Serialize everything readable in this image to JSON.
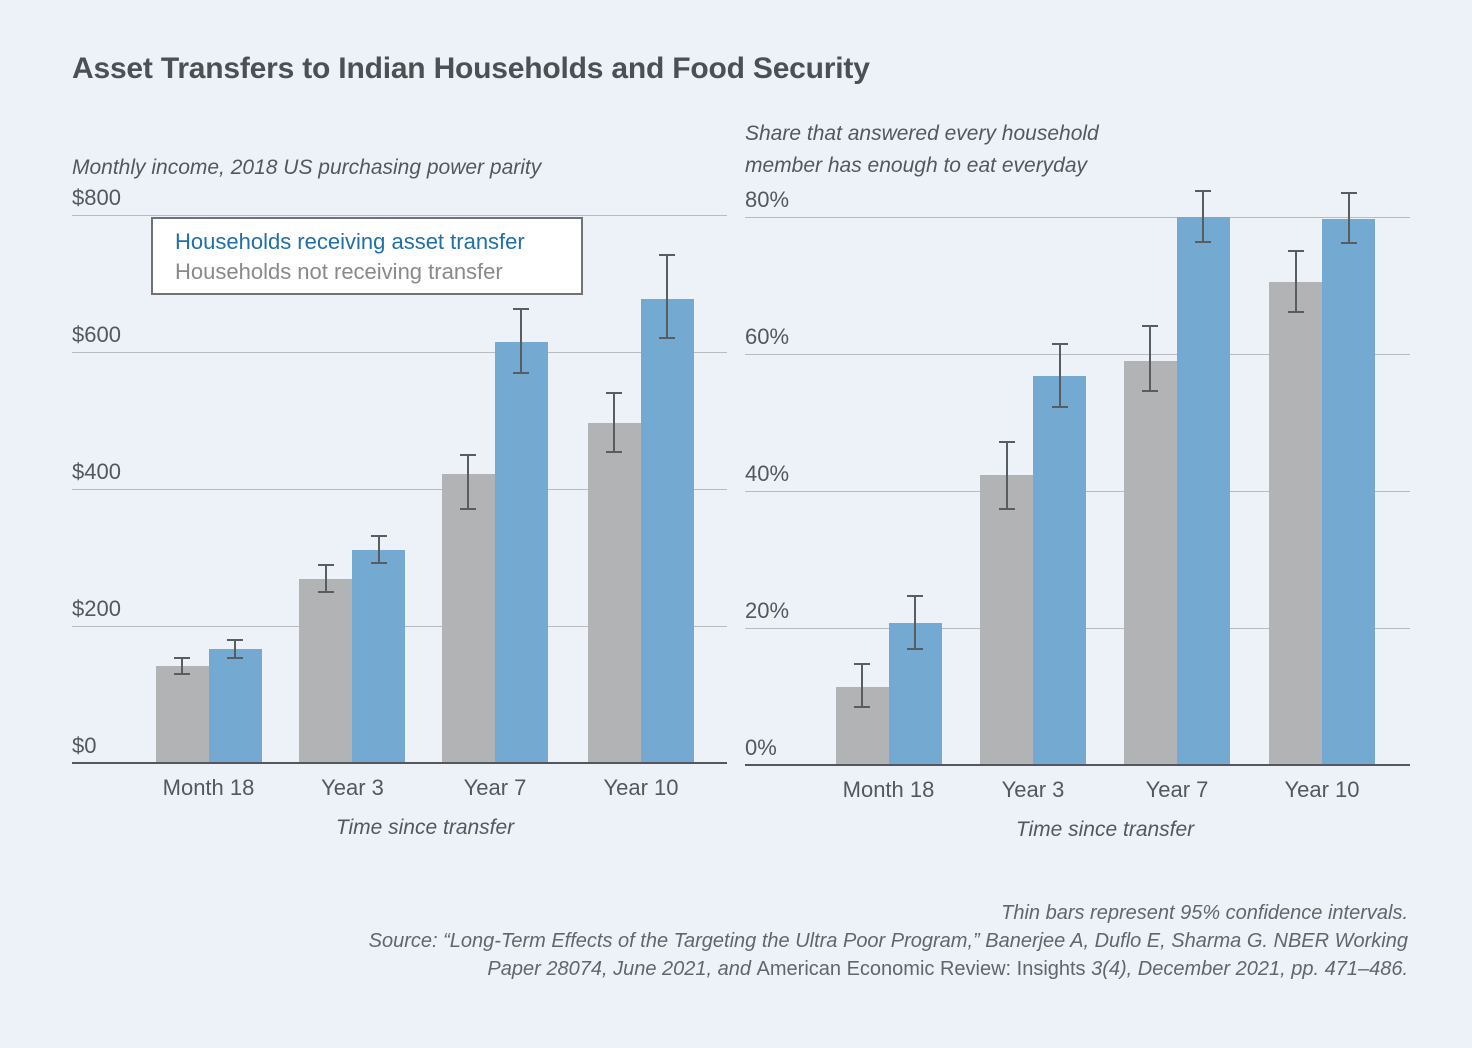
{
  "page": {
    "title": "Asset Transfers to Indian Households and Food Security",
    "background_color": "#edf2f8"
  },
  "legend": {
    "receiving_label": "Households receiving asset transfer",
    "not_receiving_label": "Households not receiving transfer",
    "receiving_text_color": "#1f6fa9",
    "not_receiving_text_color": "#87898c"
  },
  "colors": {
    "bar_blue": "#74a9d2",
    "bar_gray": "#b1b3b5",
    "gridline": "#b9bcbf",
    "axis": "#54585c",
    "error_bar": "#585d62",
    "title_text": "#4b5055",
    "label_text": "#54585d"
  },
  "chart_data": [
    {
      "type": "bar",
      "title": "Monthly income, 2018 US purchasing power parity",
      "title_lines": [
        "Monthly income, 2018 US purchasing power parity"
      ],
      "xlabel": "Time since transfer",
      "categories": [
        "Month 18",
        "Year 3",
        "Year 7",
        "Year 10"
      ],
      "ylim": [
        0,
        800
      ],
      "yticks": [
        {
          "value": 0,
          "label": "$0"
        },
        {
          "value": 200,
          "label": "$200"
        },
        {
          "value": 400,
          "label": "$400"
        },
        {
          "value": 600,
          "label": "$600"
        },
        {
          "value": 800,
          "label": "$800"
        }
      ],
      "grid": true,
      "legend_position": "top-left-inset",
      "error_bar_meaning": "95% confidence intervals",
      "series": [
        {
          "id": "not_receiving",
          "name": "Households not receiving transfer",
          "color": "#b1b3b5",
          "values": [
            142,
            268,
            422,
            496
          ],
          "ci_low": [
            130,
            249,
            371,
            454
          ],
          "ci_high": [
            153,
            289,
            450,
            540
          ]
        },
        {
          "id": "receiving",
          "name": "Households receiving asset transfer",
          "color": "#74a9d2",
          "values": [
            167,
            311,
            615,
            678
          ],
          "ci_low": [
            154,
            292,
            570,
            620
          ],
          "ci_high": [
            180,
            332,
            663,
            741
          ]
        }
      ]
    },
    {
      "type": "bar",
      "title": "Share that answered every household member has enough to eat everyday",
      "title_lines": [
        "Share that answered every household",
        "member has enough to eat everyday"
      ],
      "xlabel": "Time since transfer",
      "categories": [
        "Month 18",
        "Year 3",
        "Year 7",
        "Year 10"
      ],
      "ylim": [
        0,
        80
      ],
      "yticks": [
        {
          "value": 0,
          "label": "0%"
        },
        {
          "value": 20,
          "label": "20%"
        },
        {
          "value": 40,
          "label": "40%"
        },
        {
          "value": 60,
          "label": "60%"
        },
        {
          "value": 80,
          "label": "80%"
        }
      ],
      "grid": true,
      "error_bar_meaning": "95% confidence intervals",
      "series": [
        {
          "id": "not_receiving",
          "name": "Households not receiving transfer",
          "color": "#b1b3b5",
          "values": [
            11.4,
            42.3,
            59.0,
            70.5
          ],
          "ci_low": [
            8.4,
            37.4,
            54.6,
            66.2
          ],
          "ci_high": [
            14.8,
            47.1,
            64.1,
            75.0
          ]
        },
        {
          "id": "receiving",
          "name": "Households receiving asset transfer",
          "color": "#74a9d2",
          "values": [
            20.7,
            56.8,
            80.0,
            79.7
          ],
          "ci_low": [
            16.9,
            52.3,
            76.4,
            76.2
          ],
          "ci_high": [
            24.6,
            61.5,
            83.8,
            83.5
          ]
        }
      ]
    }
  ],
  "footer": {
    "note": "Thin bars represent 95% confidence intervals.",
    "source_line1": "Source: “Long-Term Effects of the Targeting the Ultra Poor Program,” Banerjee A, Duflo E, Sharma G. NBER Working",
    "source_line2_italic_prefix": "Paper 28074, June 2021, and ",
    "source_line2_roman": "American Economic Review: Insights",
    "source_line2_italic_suffix": " 3(4), December 2021, pp. 471–486."
  }
}
